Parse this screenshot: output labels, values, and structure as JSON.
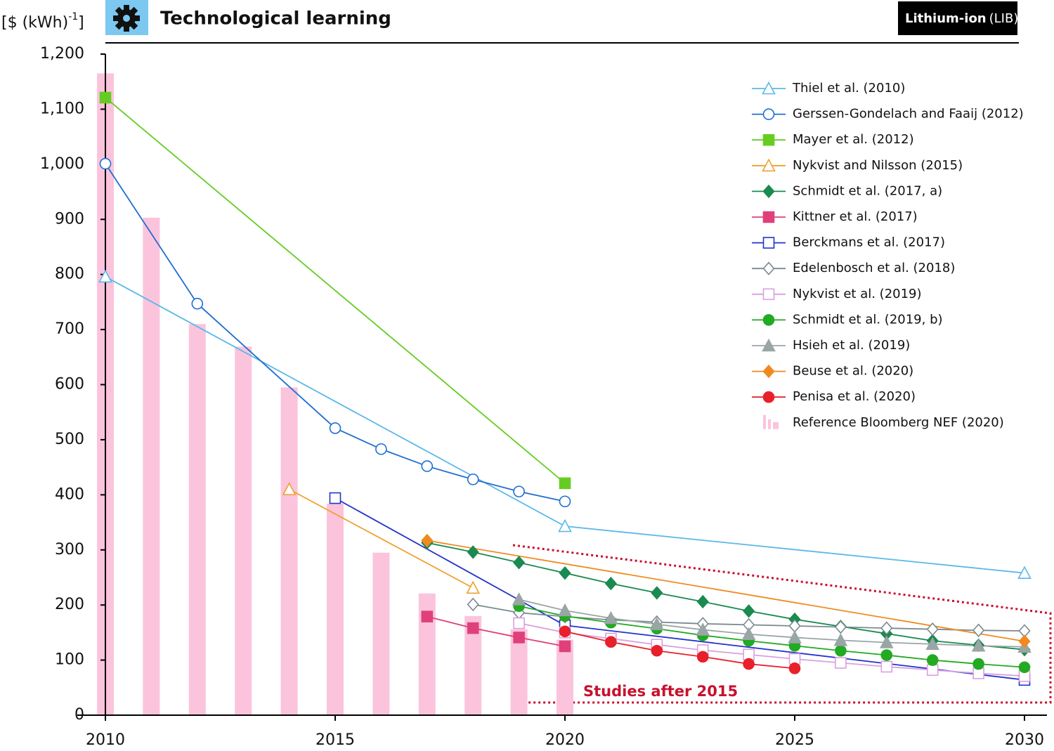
{
  "chart_data": {
    "type": "line",
    "title": "Technological learning",
    "badge": {
      "bold": "Lithium-ion",
      "normal": "(LIB)"
    },
    "y_label": {
      "main": "[$ (kWh)",
      "sup": "-1",
      "close": "]"
    },
    "annotation": "Studies after 2015",
    "xlim": [
      2010,
      2030
    ],
    "ylim": [
      0,
      1200
    ],
    "xticks": [
      2010,
      2015,
      2020,
      2025,
      2030
    ],
    "yticks": [
      0,
      100,
      200,
      300,
      400,
      500,
      600,
      700,
      800,
      900,
      {
        "value": 1000,
        "label": "1,000"
      },
      {
        "value": 1100,
        "label": "1,100"
      },
      {
        "value": 1200,
        "label": "1,200"
      }
    ],
    "bars": {
      "name": "Reference Bloomberg NEF (2020)",
      "color": "#fbc4dc",
      "x": [
        2010,
        2011,
        2012,
        2013,
        2014,
        2015,
        2016,
        2017,
        2018,
        2019,
        2020
      ],
      "values": [
        1165,
        903,
        710,
        669,
        595,
        384,
        295,
        221,
        180,
        156,
        137
      ]
    },
    "series": [
      {
        "name": "Thiel et al. (2010)",
        "color": "#5bb8e8",
        "marker": "triangle",
        "filled": false,
        "x": [
          2010,
          2020,
          2030
        ],
        "values": [
          796,
          343,
          258
        ]
      },
      {
        "name": "Gerssen-Gondelach and Faaij (2012)",
        "color": "#1f6fd0",
        "marker": "circle",
        "filled": false,
        "x": [
          2010,
          2012,
          2015,
          2016,
          2017,
          2018,
          2019,
          2020
        ],
        "values": [
          1001,
          747,
          521,
          483,
          452,
          428,
          406,
          388
        ]
      },
      {
        "name": "Mayer et al. (2012)",
        "color": "#66cc22",
        "marker": "square",
        "filled": true,
        "x": [
          2010,
          2020
        ],
        "values": [
          1121,
          421
        ]
      },
      {
        "name": "Nykvist and Nilsson (2015)",
        "color": "#f0a030",
        "marker": "triangle",
        "filled": false,
        "x": [
          2014,
          2018
        ],
        "values": [
          410,
          231
        ]
      },
      {
        "name": "Schmidt et al. (2017, a)",
        "color": "#1a8a50",
        "marker": "diamond",
        "filled": true,
        "x": [
          2017,
          2018,
          2019,
          2020,
          2021,
          2022,
          2023,
          2024,
          2025,
          2026,
          2027,
          2028,
          2029,
          2030
        ],
        "values": [
          313,
          296,
          277,
          258,
          239,
          222,
          206,
          189,
          174,
          161,
          148,
          135,
          127,
          119
        ]
      },
      {
        "name": "Kittner et al. (2017)",
        "color": "#e0407a",
        "marker": "square",
        "filled": true,
        "x": [
          2017,
          2018,
          2019,
          2020
        ],
        "values": [
          179,
          158,
          141,
          125
        ]
      },
      {
        "name": "Berckmans et al. (2017)",
        "color": "#2233cc",
        "marker": "square",
        "filled": false,
        "x": [
          2015,
          2020,
          2030
        ],
        "values": [
          394,
          163,
          64
        ]
      },
      {
        "name": "Edelenbosch et al. (2018)",
        "color": "#7a8a90",
        "marker": "diamond",
        "filled": false,
        "x": [
          2018,
          2019,
          2020,
          2021,
          2022,
          2023,
          2024,
          2025,
          2026,
          2027,
          2028,
          2029,
          2030
        ],
        "values": [
          201,
          186,
          179,
          173,
          169,
          166,
          164,
          162,
          160,
          158,
          156,
          154,
          153
        ]
      },
      {
        "name": "Nykvist et al. (2019)",
        "color": "#d9a0e0",
        "marker": "square",
        "filled": false,
        "x": [
          2019,
          2020,
          2021,
          2022,
          2023,
          2024,
          2025,
          2026,
          2027,
          2028,
          2029,
          2030
        ],
        "values": [
          167,
          150,
          139,
          128,
          118,
          110,
          102,
          95,
          88,
          82,
          76,
          71
        ]
      },
      {
        "name": "Schmidt et al. (2019, b)",
        "color": "#22aa22",
        "marker": "circle",
        "filled": true,
        "x": [
          2019,
          2020,
          2021,
          2022,
          2023,
          2024,
          2025,
          2026,
          2027,
          2028,
          2029,
          2030
        ],
        "values": [
          198,
          180,
          168,
          157,
          145,
          135,
          126,
          117,
          109,
          100,
          93,
          87
        ]
      },
      {
        "name": "Hsieh et al. (2019)",
        "color": "#9aa5a5",
        "marker": "triangle",
        "filled": true,
        "x": [
          2019,
          2020,
          2021,
          2022,
          2023,
          2024,
          2025,
          2026,
          2027,
          2028,
          2029,
          2030
        ],
        "values": [
          210,
          190,
          176,
          165,
          155,
          147,
          141,
          136,
          132,
          129,
          126,
          124
        ]
      },
      {
        "name": "Beuse et al. (2020)",
        "color": "#f08a20",
        "marker": "diamond",
        "filled": true,
        "x": [
          2017,
          2030
        ],
        "values": [
          317,
          134
        ]
      },
      {
        "name": "Penisa et al. (2020)",
        "color": "#e8202a",
        "marker": "circle",
        "filled": true,
        "x": [
          2020,
          2021,
          2022,
          2023,
          2024,
          2025
        ],
        "values": [
          152,
          133,
          117,
          106,
          93,
          85
        ]
      }
    ]
  }
}
